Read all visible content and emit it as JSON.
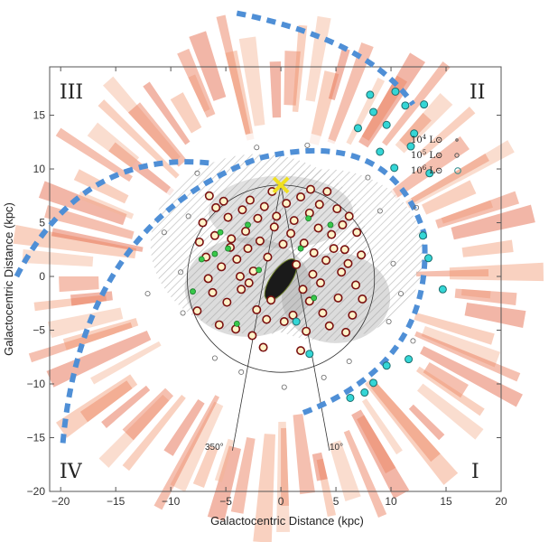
{
  "chart_data": {
    "type": "scatter",
    "title": "",
    "xlabel": "Galactocentric Distance (kpc)",
    "ylabel": "Galactocentric Distance (kpc)",
    "xlim": [
      -21,
      20
    ],
    "ylim": [
      -20,
      19.5
    ],
    "xticks": [
      "−20",
      "−15",
      "−10",
      "−5",
      "0",
      "5",
      "10",
      "15",
      "20"
    ],
    "yticks": [
      "15",
      "10",
      "5",
      "0",
      "−5",
      "−10",
      "−15",
      "−20"
    ],
    "quadrant_labels": [
      "III",
      "II",
      "IV",
      "I"
    ],
    "longitude_labels": [
      "350°",
      "10°"
    ],
    "legend": {
      "placement": "right",
      "entries": [
        {
          "mantissa": "10",
          "exponent": "4",
          "unit": "L⊙"
        },
        {
          "mantissa": "10",
          "exponent": "5",
          "unit": "L⊙"
        },
        {
          "mantissa": "10",
          "exponent": "6",
          "unit": "L⊙"
        }
      ]
    },
    "sun_position": [
      0,
      8.5
    ],
    "solar_circle_radius_kpc": 8.5,
    "colors": {
      "background_arms": "#e8734f",
      "dashed_arcs": "#4f8fd6",
      "grey_regions": "#9a9a9a",
      "sources_outline": "#7a1010",
      "sources_fill": "#fff3c8",
      "cyan_sources": "#34d6d6",
      "green_sources": "#38c84a",
      "sun_marker": "#f0e020"
    },
    "series": [
      {
        "marker": "open-circle-yellow",
        "points": [
          [
            -6.5,
            7.5
          ],
          [
            -5.2,
            7.0
          ],
          [
            -4.8,
            5.5
          ],
          [
            -3.5,
            6.2
          ],
          [
            -2.8,
            7.1
          ],
          [
            -1.5,
            6.5
          ],
          [
            -0.8,
            7.9
          ],
          [
            0.5,
            6.8
          ],
          [
            1.8,
            7.4
          ],
          [
            2.7,
            8.1
          ],
          [
            3.5,
            6.7
          ],
          [
            4.2,
            7.9
          ],
          [
            5.1,
            6.3
          ],
          [
            6.2,
            5.6
          ],
          [
            -7.1,
            5.0
          ],
          [
            -6.0,
            3.8
          ],
          [
            -4.5,
            3.5
          ],
          [
            -3.2,
            4.2
          ],
          [
            -1.9,
            3.3
          ],
          [
            -0.6,
            4.6
          ],
          [
            0.9,
            4.0
          ],
          [
            2.1,
            3.1
          ],
          [
            3.4,
            4.5
          ],
          [
            4.6,
            3.9
          ],
          [
            5.8,
            2.5
          ],
          [
            6.9,
            4.1
          ],
          [
            -6.8,
            1.8
          ],
          [
            -5.4,
            0.9
          ],
          [
            -4.0,
            1.6
          ],
          [
            -2.5,
            0.5
          ],
          [
            -1.2,
            1.8
          ],
          [
            1.4,
            1.1
          ],
          [
            2.9,
            0.2
          ],
          [
            4.1,
            1.5
          ],
          [
            5.5,
            0.4
          ],
          [
            6.8,
            -0.8
          ],
          [
            -6.2,
            -1.5
          ],
          [
            -4.9,
            -2.4
          ],
          [
            -3.6,
            -1.2
          ],
          [
            -2.2,
            -3.1
          ],
          [
            -0.9,
            -2.2
          ],
          [
            1.1,
            -3.6
          ],
          [
            2.6,
            -2.3
          ],
          [
            3.8,
            -3.4
          ],
          [
            5.2,
            -2.0
          ],
          [
            6.5,
            -3.6
          ],
          [
            -5.6,
            -4.5
          ],
          [
            -4.1,
            -4.9
          ],
          [
            -2.6,
            -5.5
          ],
          [
            2.3,
            -5.1
          ],
          [
            4.4,
            -4.6
          ],
          [
            5.9,
            -5.2
          ],
          [
            -7.6,
            -3.2
          ],
          [
            7.4,
            -2.1
          ],
          [
            -1.6,
            -6.6
          ],
          [
            1.8,
            -6.9
          ],
          [
            -3.0,
            2.6
          ],
          [
            3.0,
            2.2
          ],
          [
            -5.9,
            6.4
          ],
          [
            5.6,
            4.8
          ],
          [
            0.2,
            3.0
          ],
          [
            -0.4,
            5.6
          ],
          [
            1.2,
            5.2
          ],
          [
            -2.1,
            5.4
          ],
          [
            2.6,
            5.9
          ],
          [
            -3.7,
            0.0
          ],
          [
            3.6,
            -0.6
          ],
          [
            -7.4,
            3.2
          ],
          [
            7.3,
            2.0
          ],
          [
            0.3,
            -4.2
          ],
          [
            -1.3,
            -4.0
          ],
          [
            -4.6,
            2.7
          ],
          [
            4.8,
            2.6
          ],
          [
            -6.6,
            -0.2
          ],
          [
            6.1,
            1.2
          ],
          [
            -2.9,
            -0.6
          ],
          [
            2.0,
            -1.2
          ]
        ]
      },
      {
        "marker": "filled-green",
        "points": [
          [
            -4.8,
            2.6
          ],
          [
            -7.2,
            1.6
          ],
          [
            -5.5,
            4.1
          ],
          [
            -3.0,
            4.8
          ],
          [
            1.8,
            2.6
          ],
          [
            4.5,
            4.8
          ],
          [
            -2.0,
            0.6
          ],
          [
            -8.0,
            -1.4
          ],
          [
            -4.0,
            -4.4
          ],
          [
            3.0,
            -2.0
          ],
          [
            -6.0,
            2.1
          ],
          [
            2.5,
            5.4
          ]
        ]
      },
      {
        "marker": "filled-cyan",
        "points": [
          [
            7.0,
            13.8
          ],
          [
            8.4,
            15.3
          ],
          [
            9.6,
            14.1
          ],
          [
            10.4,
            17.2
          ],
          [
            11.3,
            15.9
          ],
          [
            12.1,
            13.3
          ],
          [
            9.0,
            11.6
          ],
          [
            10.3,
            10.1
          ],
          [
            11.8,
            12.1
          ],
          [
            8.1,
            16.9
          ],
          [
            13.0,
            16.0
          ],
          [
            13.5,
            9.6
          ],
          [
            7.6,
            -10.8
          ],
          [
            8.4,
            -9.9
          ],
          [
            9.6,
            -8.3
          ],
          [
            6.3,
            -11.3
          ],
          [
            11.6,
            -7.7
          ],
          [
            13.4,
            1.7
          ],
          [
            12.9,
            3.8
          ],
          [
            14.7,
            -1.2
          ],
          [
            1.4,
            -4.2
          ],
          [
            2.6,
            -7.2
          ]
        ]
      },
      {
        "marker": "open-circle-grey",
        "points": [
          [
            -8.4,
            5.6
          ],
          [
            -9.1,
            0.4
          ],
          [
            -8.9,
            -3.4
          ],
          [
            9.0,
            6.1
          ],
          [
            10.2,
            1.2
          ],
          [
            9.8,
            -4.2
          ],
          [
            -2.2,
            12.0
          ],
          [
            2.4,
            12.2
          ],
          [
            -7.6,
            9.6
          ],
          [
            7.9,
            9.2
          ],
          [
            -10.6,
            4.1
          ],
          [
            10.9,
            -1.6
          ],
          [
            0.3,
            -10.3
          ],
          [
            -3.6,
            -8.9
          ],
          [
            3.9,
            -9.4
          ],
          [
            -12.1,
            -1.6
          ],
          [
            12.3,
            6.4
          ],
          [
            -6.0,
            -7.6
          ],
          [
            6.2,
            -7.9
          ],
          [
            12.0,
            -6.0
          ]
        ]
      }
    ],
    "x": [],
    "y": []
  }
}
